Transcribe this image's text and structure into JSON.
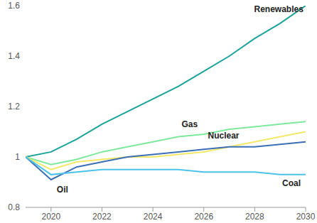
{
  "chart_data": {
    "type": "line",
    "x": [
      2019,
      2020,
      2021,
      2022,
      2023,
      2024,
      2025,
      2026,
      2027,
      2028,
      2029,
      2030
    ],
    "xlim": [
      2019,
      2030
    ],
    "xticks": [
      2020,
      2022,
      2024,
      2026,
      2028,
      2030
    ],
    "ylim": [
      0.8,
      1.6
    ],
    "yticks": [
      0.8,
      1,
      1.2,
      1.4,
      1.6
    ],
    "grid": false,
    "series": [
      {
        "name": "Renewables",
        "color": "#1aa39a",
        "values": [
          1,
          1.02,
          1.07,
          1.13,
          1.18,
          1.23,
          1.28,
          1.34,
          1.4,
          1.47,
          1.53,
          1.6
        ]
      },
      {
        "name": "Gas",
        "color": "#7ee89c",
        "values": [
          1,
          0.97,
          0.99,
          1.02,
          1.04,
          1.06,
          1.08,
          1.09,
          1.11,
          1.12,
          1.13,
          1.14
        ]
      },
      {
        "name": "Nuclear",
        "color": "#f3e868",
        "values": [
          1,
          0.95,
          0.98,
          0.99,
          1.0,
          1.0,
          1.01,
          1.02,
          1.04,
          1.06,
          1.08,
          1.1
        ]
      },
      {
        "name": "Oil",
        "color": "#3b6fb6",
        "values": [
          1,
          0.91,
          0.96,
          0.98,
          1.0,
          1.01,
          1.02,
          1.03,
          1.04,
          1.04,
          1.05,
          1.06
        ]
      },
      {
        "name": "Coal",
        "color": "#4cc3ea",
        "values": [
          1,
          0.93,
          0.94,
          0.95,
          0.95,
          0.95,
          0.95,
          0.94,
          0.94,
          0.94,
          0.93,
          0.93
        ]
      }
    ]
  }
}
